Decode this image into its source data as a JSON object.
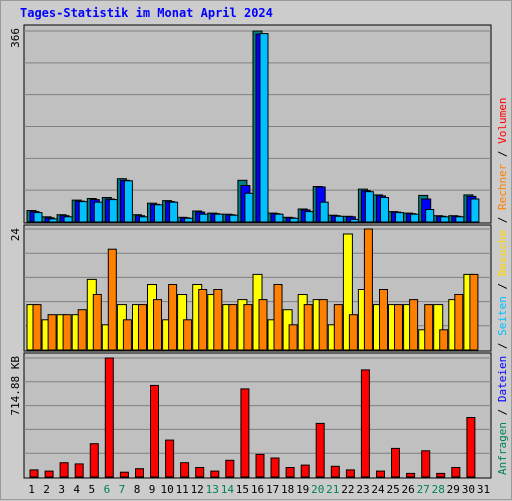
{
  "title": "Tages-Statistik im Monat April 2024",
  "legend": [
    {
      "text": "Anfragen",
      "color": "#00805c"
    },
    {
      "text": " / ",
      "color": "#000000"
    },
    {
      "text": "Dateien",
      "color": "#0000ff"
    },
    {
      "text": " / ",
      "color": "#000000"
    },
    {
      "text": "Seiten",
      "color": "#00c0ff"
    },
    {
      "text": " / ",
      "color": "#000000"
    },
    {
      "text": "Besuche",
      "color": "#ffd700"
    },
    {
      "text": " / ",
      "color": "#000000"
    },
    {
      "text": "Rechner",
      "color": "#ff8000"
    },
    {
      "text": " / ",
      "color": "#000000"
    },
    {
      "text": "Volumen",
      "color": "#ff0000"
    }
  ],
  "colors": {
    "weekday_label": "#000000",
    "weekend_label": "#00805c",
    "plot_bg": "#c0c0c0",
    "grid": "#808080"
  },
  "chart_data": [
    {
      "type": "bar",
      "name": "top",
      "max_label": "366",
      "ylim": [
        0,
        366
      ],
      "series": [
        {
          "name": "Anfragen",
          "color": "#008080",
          "values": [
            22,
            10,
            14,
            42,
            45,
            47,
            83,
            14,
            36,
            41,
            9,
            21,
            17,
            15,
            80,
            366,
            17,
            9,
            25,
            68,
            13,
            11,
            63,
            52,
            20,
            17,
            51,
            12,
            12,
            52
          ]
        },
        {
          "name": "Dateien",
          "color": "#0000ff",
          "values": [
            20,
            8,
            12,
            40,
            43,
            44,
            80,
            12,
            34,
            39,
            8,
            19,
            16,
            14,
            70,
            360,
            16,
            8,
            23,
            67,
            12,
            10,
            60,
            50,
            19,
            16,
            44,
            11,
            11,
            49
          ]
        },
        {
          "name": "Seiten",
          "color": "#00c0ff",
          "values": [
            18,
            6,
            10,
            39,
            38,
            43,
            79,
            10,
            33,
            38,
            7,
            15,
            15,
            13,
            55,
            361,
            15,
            7,
            20,
            38,
            11,
            5,
            58,
            47,
            18,
            15,
            24,
            10,
            10,
            44
          ]
        }
      ]
    },
    {
      "type": "bar",
      "name": "middle",
      "max_label": "24",
      "ylim": [
        0,
        24
      ],
      "series": [
        {
          "name": "Besuche",
          "color": "#ffff00",
          "values": [
            9,
            6,
            7,
            7,
            14,
            5,
            9,
            9,
            13,
            6,
            11,
            13,
            11,
            9,
            10,
            15,
            6,
            8,
            11,
            10,
            5,
            23,
            12,
            9,
            9,
            9,
            4,
            9,
            10,
            15
          ]
        },
        {
          "name": "Rechner",
          "color": "#ff8000",
          "values": [
            9,
            7,
            7,
            8,
            11,
            20,
            6,
            9,
            10,
            13,
            6,
            12,
            12,
            9,
            9,
            10,
            13,
            5,
            9,
            10,
            9,
            7,
            24,
            12,
            9,
            10,
            9,
            4,
            11,
            15
          ]
        }
      ]
    },
    {
      "type": "bar",
      "name": "bottom",
      "max_label": "714.88 KB",
      "ylim": [
        0,
        1
      ],
      "series": [
        {
          "name": "Volumen",
          "color": "#ff0000",
          "values": [
            0.06,
            0.05,
            0.12,
            0.11,
            0.28,
            1.0,
            0.04,
            0.07,
            0.77,
            0.31,
            0.12,
            0.08,
            0.05,
            0.14,
            0.74,
            0.19,
            0.16,
            0.08,
            0.1,
            0.45,
            0.09,
            0.06,
            0.9,
            0.05,
            0.24,
            0.03,
            0.22,
            0.03,
            0.08,
            0.5
          ]
        }
      ]
    }
  ],
  "x_labels": [
    {
      "text": "1",
      "weekend": false
    },
    {
      "text": "2",
      "weekend": false
    },
    {
      "text": "3",
      "weekend": false
    },
    {
      "text": "4",
      "weekend": false
    },
    {
      "text": "5",
      "weekend": false
    },
    {
      "text": "6",
      "weekend": true
    },
    {
      "text": "7",
      "weekend": true
    },
    {
      "text": "8",
      "weekend": false
    },
    {
      "text": "9",
      "weekend": false
    },
    {
      "text": "10",
      "weekend": false
    },
    {
      "text": "11",
      "weekend": false
    },
    {
      "text": "12",
      "weekend": false
    },
    {
      "text": "13",
      "weekend": true
    },
    {
      "text": "14",
      "weekend": true
    },
    {
      "text": "15",
      "weekend": false
    },
    {
      "text": "16",
      "weekend": false
    },
    {
      "text": "17",
      "weekend": false
    },
    {
      "text": "18",
      "weekend": false
    },
    {
      "text": "19",
      "weekend": false
    },
    {
      "text": "20",
      "weekend": true
    },
    {
      "text": "21",
      "weekend": true
    },
    {
      "text": "22",
      "weekend": false
    },
    {
      "text": "23",
      "weekend": false
    },
    {
      "text": "24",
      "weekend": false
    },
    {
      "text": "25",
      "weekend": false
    },
    {
      "text": "26",
      "weekend": false
    },
    {
      "text": "27",
      "weekend": true
    },
    {
      "text": "28",
      "weekend": true
    },
    {
      "text": "29",
      "weekend": false
    },
    {
      "text": "30",
      "weekend": false
    },
    {
      "text": "31",
      "weekend": false
    }
  ]
}
